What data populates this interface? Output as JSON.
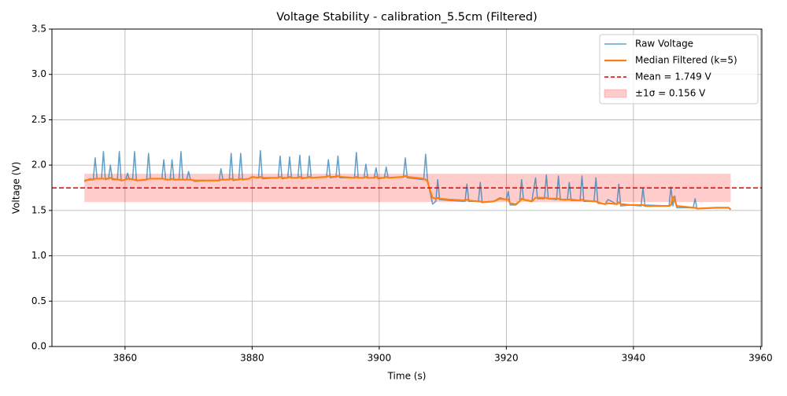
{
  "chart_data": {
    "type": "line",
    "title": "Voltage Stability - calibration_5.5cm (Filtered)",
    "xlabel": "Time (s)",
    "ylabel": "Voltage (V)",
    "xlim": [
      3848.5,
      3960.2
    ],
    "ylim": [
      0,
      3.5
    ],
    "xticks": [
      3860,
      3880,
      3900,
      3920,
      3940,
      3960
    ],
    "yticks": [
      {
        "value": 0,
        "label": "0.0"
      },
      {
        "value": 0.5,
        "label": "0.5"
      },
      {
        "value": 1,
        "label": "1.0"
      },
      {
        "value": 1.5,
        "label": "1.5"
      },
      {
        "value": 2,
        "label": "2.0"
      },
      {
        "value": 2.5,
        "label": "2.5"
      },
      {
        "value": 3,
        "label": "3.0"
      },
      {
        "value": 3.5,
        "label": "3.5"
      }
    ],
    "grid": true,
    "legend": "upper right",
    "x": [
      3853.6,
      3854.5,
      3855.0,
      3855.3,
      3855.6,
      3856.3,
      3856.6,
      3856.9,
      3857.4,
      3857.7,
      3858.0,
      3858.8,
      3859.1,
      3859.4,
      3860.1,
      3860.4,
      3860.7,
      3861.2,
      3861.5,
      3861.8,
      3863.4,
      3863.7,
      3864.0,
      3865.8,
      3866.1,
      3866.4,
      3867.1,
      3867.4,
      3867.7,
      3868.5,
      3868.8,
      3869.1,
      3869.7,
      3870.0,
      3870.3,
      3871.0,
      3873.0,
      3874.8,
      3875.1,
      3875.4,
      3876.4,
      3876.7,
      3877.0,
      3877.9,
      3878.2,
      3878.5,
      3879.5,
      3880.0,
      3881.0,
      3881.3,
      3881.6,
      3884.1,
      3884.4,
      3884.7,
      3885.6,
      3885.9,
      3886.2,
      3887.2,
      3887.5,
      3887.8,
      3888.7,
      3889.0,
      3889.3,
      3891.7,
      3892.0,
      3892.3,
      3893.2,
      3893.5,
      3893.8,
      3896.1,
      3896.4,
      3896.7,
      3897.6,
      3897.9,
      3898.2,
      3899.2,
      3899.5,
      3899.8,
      3900.8,
      3901.1,
      3901.4,
      3903.8,
      3904.1,
      3904.4,
      3907.0,
      3907.3,
      3907.6,
      3908.0,
      3908.4,
      3908.9,
      3909.2,
      3909.5,
      3911.0,
      3913.5,
      3913.8,
      3914.1,
      3915.6,
      3915.9,
      3916.2,
      3918.0,
      3919.0,
      3920.0,
      3920.3,
      3920.6,
      3921.5,
      3922.1,
      3922.4,
      3922.7,
      3924.0,
      3924.6,
      3924.9,
      3926.0,
      3926.3,
      3926.6,
      3927.9,
      3928.2,
      3928.5,
      3929.6,
      3929.9,
      3930.2,
      3931.6,
      3931.9,
      3932.2,
      3933.8,
      3934.1,
      3934.4,
      3935.5,
      3936.0,
      3937.4,
      3937.7,
      3938.0,
      3939.5,
      3941.2,
      3941.5,
      3941.8,
      3945.6,
      3945.9,
      3946.2,
      3946.5,
      3946.8,
      3949.4,
      3949.7,
      3950.0,
      3953.0,
      3955.0,
      3955.3
    ],
    "series": [
      {
        "name": "Raw Voltage",
        "color": "#1f77b4",
        "opacity": 0.7,
        "width": 1.5,
        "values": [
          1.82,
          1.85,
          1.84,
          2.08,
          1.85,
          1.85,
          2.15,
          1.84,
          1.85,
          2.0,
          1.84,
          1.84,
          2.15,
          1.83,
          1.84,
          1.91,
          1.84,
          1.85,
          2.15,
          1.83,
          1.84,
          2.13,
          1.85,
          1.85,
          2.06,
          1.84,
          1.84,
          2.06,
          1.84,
          1.84,
          2.15,
          1.84,
          1.84,
          1.93,
          1.84,
          1.82,
          1.83,
          1.83,
          1.96,
          1.84,
          1.84,
          2.13,
          1.83,
          1.84,
          2.13,
          1.84,
          1.85,
          1.87,
          1.86,
          2.16,
          1.85,
          1.86,
          2.1,
          1.85,
          1.86,
          2.09,
          1.86,
          1.86,
          2.11,
          1.85,
          1.86,
          2.1,
          1.86,
          1.87,
          2.06,
          1.86,
          1.87,
          2.1,
          1.86,
          1.86,
          2.14,
          1.86,
          1.86,
          2.01,
          1.86,
          1.86,
          1.97,
          1.85,
          1.86,
          1.98,
          1.86,
          1.87,
          2.08,
          1.86,
          1.84,
          2.12,
          1.83,
          1.7,
          1.57,
          1.6,
          1.84,
          1.62,
          1.61,
          1.6,
          1.79,
          1.6,
          1.6,
          1.81,
          1.59,
          1.6,
          1.64,
          1.62,
          1.71,
          1.56,
          1.56,
          1.6,
          1.84,
          1.62,
          1.6,
          1.86,
          1.63,
          1.63,
          1.89,
          1.63,
          1.62,
          1.88,
          1.62,
          1.62,
          1.81,
          1.61,
          1.61,
          1.88,
          1.6,
          1.6,
          1.86,
          1.58,
          1.57,
          1.62,
          1.57,
          1.79,
          1.55,
          1.56,
          1.55,
          1.75,
          1.56,
          1.55,
          1.76,
          1.55,
          1.66,
          1.53,
          1.53,
          1.63,
          1.52,
          1.53,
          1.53,
          1.51
        ]
      },
      {
        "name": "Median Filtered (k=5)",
        "color": "#ff7f0e",
        "opacity": 1,
        "width": 2.2,
        "values": [
          1.83,
          1.84,
          1.84,
          1.85,
          1.85,
          1.85,
          1.85,
          1.85,
          1.85,
          1.86,
          1.85,
          1.84,
          1.84,
          1.83,
          1.84,
          1.85,
          1.85,
          1.84,
          1.84,
          1.83,
          1.84,
          1.85,
          1.85,
          1.85,
          1.85,
          1.84,
          1.84,
          1.85,
          1.84,
          1.84,
          1.84,
          1.84,
          1.84,
          1.84,
          1.84,
          1.83,
          1.83,
          1.83,
          1.84,
          1.84,
          1.84,
          1.85,
          1.84,
          1.84,
          1.85,
          1.84,
          1.85,
          1.87,
          1.86,
          1.87,
          1.86,
          1.86,
          1.87,
          1.86,
          1.86,
          1.87,
          1.86,
          1.86,
          1.87,
          1.86,
          1.86,
          1.87,
          1.86,
          1.87,
          1.88,
          1.87,
          1.87,
          1.88,
          1.87,
          1.86,
          1.87,
          1.86,
          1.86,
          1.87,
          1.86,
          1.86,
          1.87,
          1.86,
          1.86,
          1.87,
          1.86,
          1.87,
          1.88,
          1.87,
          1.85,
          1.84,
          1.82,
          1.72,
          1.64,
          1.63,
          1.64,
          1.63,
          1.62,
          1.61,
          1.62,
          1.61,
          1.6,
          1.6,
          1.59,
          1.6,
          1.63,
          1.62,
          1.62,
          1.58,
          1.57,
          1.6,
          1.63,
          1.62,
          1.6,
          1.64,
          1.64,
          1.64,
          1.64,
          1.63,
          1.63,
          1.63,
          1.62,
          1.62,
          1.62,
          1.62,
          1.61,
          1.62,
          1.61,
          1.6,
          1.6,
          1.59,
          1.57,
          1.58,
          1.57,
          1.59,
          1.57,
          1.56,
          1.56,
          1.56,
          1.55,
          1.55,
          1.56,
          1.65,
          1.62,
          1.55,
          1.53,
          1.53,
          1.52,
          1.53,
          1.53,
          1.51
        ]
      }
    ],
    "mean": {
      "name": "Mean = 1.749 V",
      "value": 1.749,
      "color": "#e00000"
    },
    "band": {
      "name": "±1σ = 0.156 V",
      "lower": 1.593,
      "upper": 1.905,
      "x": [
        3853.6,
        3955.3
      ],
      "color": "#ff0000",
      "opacity": 0.2
    }
  }
}
